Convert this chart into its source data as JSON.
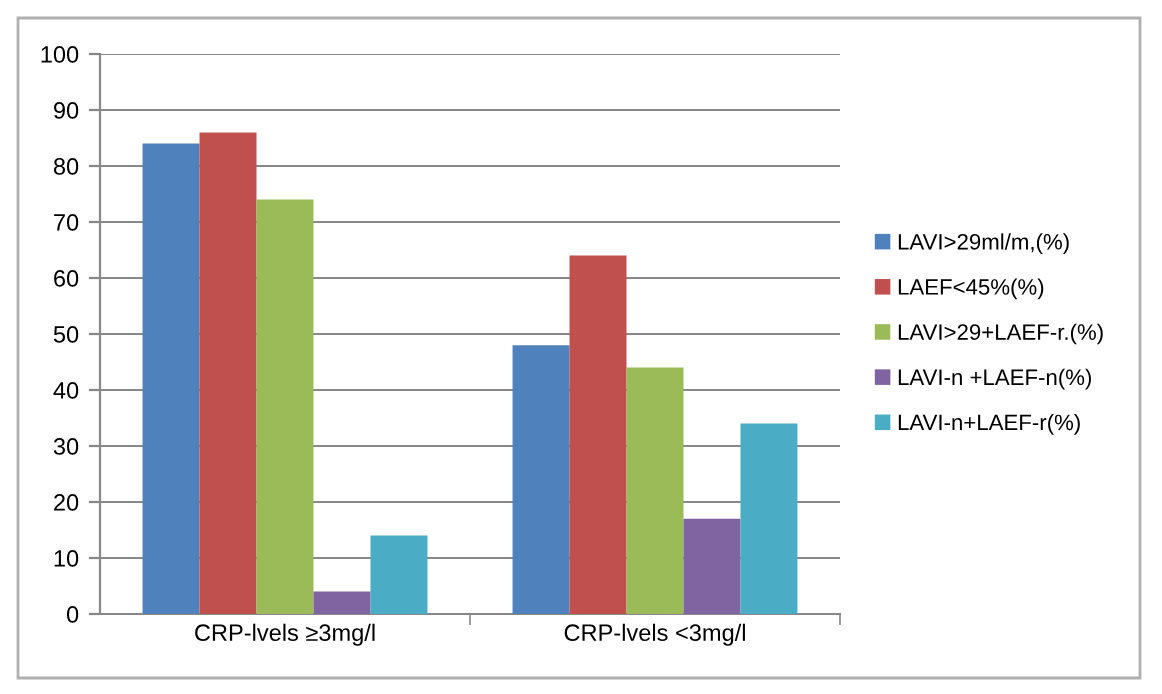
{
  "chart_data": {
    "type": "bar",
    "categories": [
      "CRP-lvels ≥3mg/l",
      "CRP-lvels <3mg/l"
    ],
    "series": [
      {
        "name": "LAVI>29ml/m,(%)",
        "color": "#4f81bd",
        "values": [
          84,
          48
        ]
      },
      {
        "name": "LAEF<45%(%)",
        "color": "#c0504d",
        "values": [
          86,
          64
        ]
      },
      {
        "name": "LAVI>29+LAEF-r.(%)",
        "color": "#9bbb59",
        "values": [
          74,
          44
        ]
      },
      {
        "name": "LAVI-n +LAEF-n(%)",
        "color": "#8064a2",
        "values": [
          4,
          17
        ]
      },
      {
        "name": "LAVI-n+LAEF-r(%)",
        "color": "#4bacc6",
        "values": [
          14,
          34
        ]
      }
    ],
    "ylim": [
      0,
      100
    ],
    "yticks": [
      0,
      10,
      20,
      30,
      40,
      50,
      60,
      70,
      80,
      90,
      100
    ],
    "grid": "y",
    "legend": "right"
  }
}
